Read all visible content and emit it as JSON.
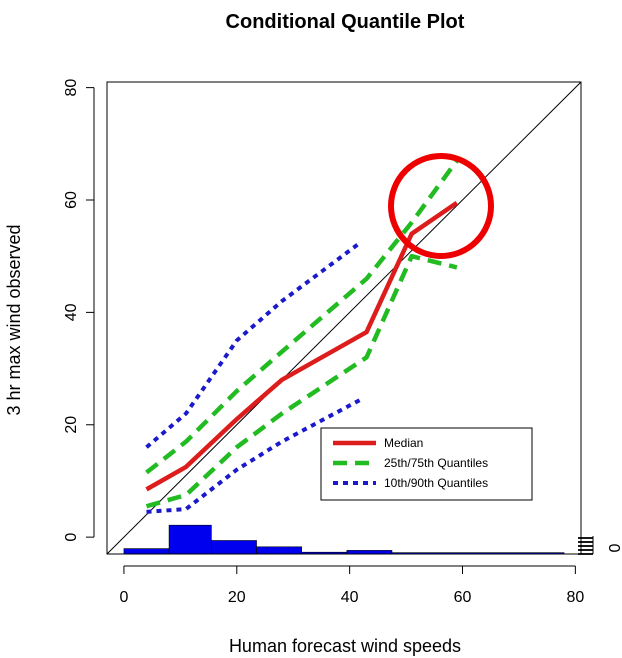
{
  "chart_data": {
    "type": "line",
    "title": "Conditional Quantile Plot",
    "xlabel": "Human forecast wind speeds",
    "ylabel": "3 hr max wind observed",
    "xlim": [
      -3,
      81
    ],
    "ylim": [
      -3,
      81
    ],
    "xticks": [
      "0",
      "20",
      "40",
      "60",
      "80"
    ],
    "yticks": [
      "0",
      "20",
      "40",
      "60",
      "80"
    ],
    "right_axis_tick": "0",
    "colors": {
      "median": "#dd1c1c",
      "quartiles": "#22bb22",
      "deciles": "#1a1acc",
      "histogram": "#0000ee",
      "highlight_circle": "#ee0000"
    },
    "series": [
      {
        "name": "Median",
        "style": "solid",
        "x": [
          4,
          11,
          20,
          28,
          43,
          51,
          59
        ],
        "y": [
          8.5,
          12.5,
          21,
          28,
          36.5,
          54,
          59.5
        ]
      },
      {
        "name": "25th/75th Quantiles",
        "style": "dashed",
        "x": [
          4,
          11,
          20,
          28,
          43,
          51,
          59
        ],
        "y": [
          11.5,
          17,
          26,
          33,
          46,
          56,
          67
        ]
      },
      {
        "name": "25th/75th Quantiles",
        "style": "dashed",
        "x": [
          4,
          11,
          20,
          28,
          43,
          51,
          59
        ],
        "y": [
          5.5,
          7.5,
          16,
          22,
          32,
          50,
          48
        ]
      },
      {
        "name": "10th/90th Quantiles",
        "style": "dotted",
        "x": [
          4,
          11,
          20,
          28,
          42
        ],
        "y": [
          16,
          22,
          35,
          42,
          52.5
        ]
      },
      {
        "name": "10th/90th Quantiles",
        "style": "dotted",
        "x": [
          4,
          11,
          20,
          28,
          42
        ],
        "y": [
          4.5,
          5,
          12,
          17,
          24.5
        ]
      }
    ],
    "histogram": [
      {
        "from": 0,
        "to": 8,
        "count": 0.6
      },
      {
        "from": 8,
        "to": 15.5,
        "count": 3.2
      },
      {
        "from": 15.5,
        "to": 23.5,
        "count": 1.5
      },
      {
        "from": 23.5,
        "to": 31.5,
        "count": 0.8
      },
      {
        "from": 31.5,
        "to": 39.5,
        "count": 0.2
      },
      {
        "from": 39.5,
        "to": 47.5,
        "count": 0.4
      },
      {
        "from": 47.5,
        "to": 78,
        "count": 0.15
      }
    ],
    "reference_line": "y = x",
    "legend": {
      "placement": "lower-right",
      "entries": [
        "Median",
        "25th/75th Quantiles",
        "10th/90th Quantiles"
      ]
    },
    "annotation": "red circle around median near x=57, y=60",
    "grid": false
  }
}
